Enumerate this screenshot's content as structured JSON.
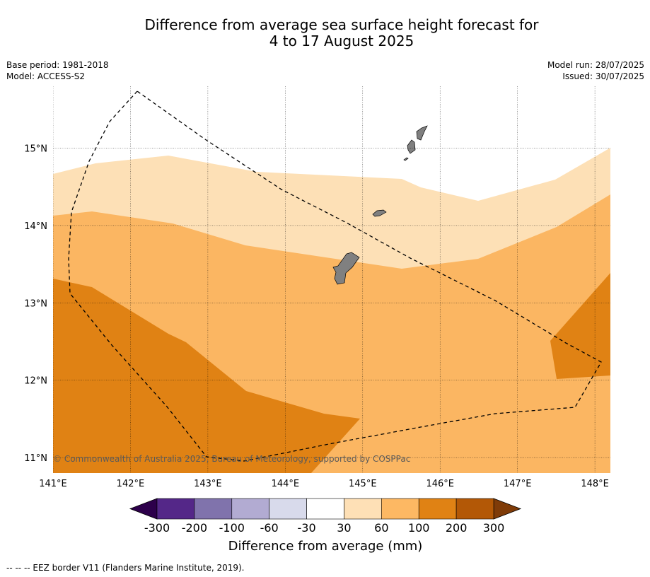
{
  "title": {
    "line1": "Difference from average sea surface height forecast for",
    "line2": "4 to 17 August 2025"
  },
  "meta_left": {
    "base_period": "Base period: 1981-2018",
    "model": "Model: ACCESS-S2"
  },
  "meta_right": {
    "model_run": "Model run: 28/07/2025",
    "issued": "Issued: 30/07/2025"
  },
  "map": {
    "lon_range": [
      141,
      148.2
    ],
    "lat_range": [
      10.8,
      15.8
    ],
    "lon_ticks": [
      "141°E",
      "142°E",
      "143°E",
      "144°E",
      "145°E",
      "146°E",
      "147°E",
      "148°E"
    ],
    "lat_ticks": [
      "11°N",
      "12°N",
      "13°N",
      "14°N",
      "15°N"
    ],
    "copyright": "© Commonwealth of Australia 2025, Bureau of Meteorology, supported by COSPPac",
    "colors": {
      "c30_60": "#fde0b6",
      "c60_100": "#fbb662",
      "c100_200": "#e08214",
      "land": "#808080",
      "eez": "#000000"
    }
  },
  "colorbar": {
    "ticks": [
      "-300",
      "-200",
      "-100",
      "-60",
      "-30",
      "30",
      "60",
      "100",
      "200",
      "300"
    ],
    "colors": [
      "#542788",
      "#8073ac",
      "#b2abd2",
      "#d8daeb",
      "#ffffff",
      "#fee0b6",
      "#fdb863",
      "#e08214",
      "#b35806"
    ],
    "under_color": "#2d004b",
    "over_color": "#7f3b08",
    "label": "Difference from average (mm)"
  },
  "footer": "-- -- -- EEZ border V11 (Flanders Marine Institute, 2019)."
}
